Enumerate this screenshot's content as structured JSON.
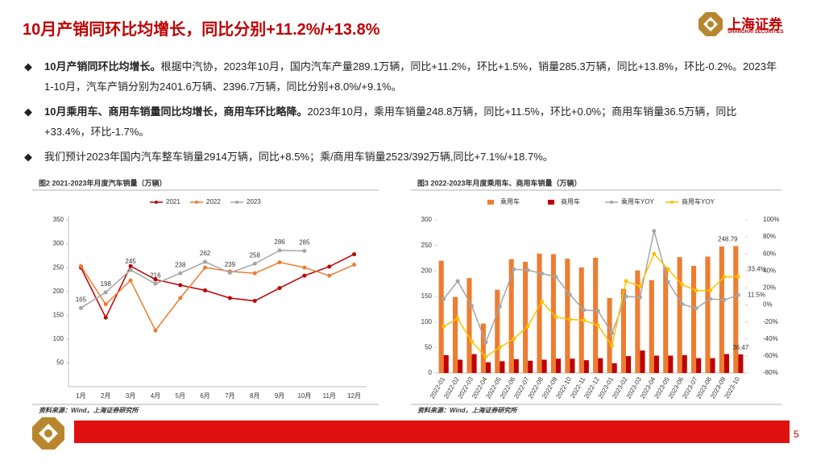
{
  "header": {
    "title": "10月产销同环比均增长，同比分别+11.2%/+13.8%",
    "logo_cn": "上海证券",
    "logo_en": "SHANGHAI SECURITIES"
  },
  "bullets": [
    {
      "lead": "10月产销同环比均增长。",
      "text": "根据中汽协，2023年10月，国内汽车产量289.1万辆，同比+11.2%，环比+1.5%，销量285.3万辆，同比+13.8%，环比-0.2%。2023年1-10月，汽车产销分别为2401.6万辆、2396.7万辆，同比分别+8.0%/+9.1%。"
    },
    {
      "lead": "10月乘用车、商用车销量同比均增长，商用车环比略降。",
      "text": "2023年10月，乘用车销量248.8万辆，同比+11.5%，环比+0.0%；商用车销量36.5万辆，同比+33.4%，环比-1.7%。"
    },
    {
      "lead": "",
      "text": "我们预计2023年国内汽车整车销量2914万辆，同比+8.5%；乘/商用车销量2523/392万辆,同比+7.1%/+18.7%。"
    }
  ],
  "chart_data": [
    {
      "type": "line",
      "title": "图2 2021-2023年月度汽车销量（万辆）",
      "source": "资料来源：Wind，上海证券研究所",
      "categories": [
        "1月",
        "2月",
        "3月",
        "4月",
        "5月",
        "6月",
        "7月",
        "8月",
        "9月",
        "10月",
        "11月",
        "12月"
      ],
      "series": [
        {
          "name": "2021",
          "color": "#c00000",
          "values": [
            250,
            145,
            253,
            225,
            213,
            202,
            186,
            180,
            207,
            233,
            252,
            278
          ]
        },
        {
          "name": "2022",
          "color": "#ed7d31",
          "values": [
            253,
            173,
            223,
            118,
            186,
            250,
            242,
            238,
            261,
            250,
            233,
            256
          ]
        },
        {
          "name": "2023",
          "color": "#a5a5a5",
          "show_values": true,
          "values": [
            165,
            198,
            245,
            216,
            238,
            262,
            239,
            258,
            286,
            285,
            null,
            null
          ]
        }
      ],
      "ylim": [
        0,
        350
      ],
      "yticks": [
        50,
        100,
        150,
        200,
        250,
        300,
        350
      ],
      "grid": false
    },
    {
      "type": "bar",
      "title": "图3 2022-2023年月度乘用车、商用车销量（万辆）",
      "source": "资料来源：Wind，上海证券研究所",
      "categories": [
        "2022-01",
        "2022-02",
        "2022-03",
        "2022-04",
        "2022-05",
        "2022-06",
        "2022-07",
        "2022-08",
        "2022-09",
        "2022-10",
        "2022-11",
        "2022-12",
        "2023-01",
        "2023-02",
        "2023-03",
        "2023-04",
        "2023-05",
        "2023-06",
        "2023-07",
        "2023-08",
        "2023-09",
        "2023-10"
      ],
      "series": [
        {
          "name": "乘用车",
          "color": "#ed7d31",
          "values": [
            220,
            149,
            186,
            97,
            163,
            223,
            218,
            234,
            233,
            224,
            207,
            226,
            147,
            165,
            201,
            182,
            207,
            227,
            210,
            228,
            248,
            248.79
          ],
          "value_labels": [
            null,
            null,
            null,
            null,
            null,
            null,
            null,
            null,
            null,
            null,
            null,
            null,
            null,
            null,
            null,
            null,
            null,
            null,
            null,
            null,
            null,
            "248.79"
          ]
        },
        {
          "name": "商用车",
          "color": "#c00000",
          "values": [
            35,
            26,
            37,
            21,
            23,
            27,
            24,
            26,
            28,
            28,
            25,
            29,
            19,
            33,
            44,
            34,
            34,
            35,
            29,
            29,
            37,
            36.47
          ],
          "value_labels": [
            null,
            null,
            null,
            null,
            null,
            null,
            null,
            null,
            null,
            null,
            null,
            null,
            null,
            null,
            null,
            null,
            null,
            null,
            null,
            null,
            null,
            "36.47"
          ]
        },
        {
          "name": "乘用车YOY",
          "color": "#a5a5a5",
          "type": "line",
          "axis": "y2",
          "values": [
            7,
            28,
            -1,
            -44,
            -2,
            42,
            41,
            37,
            33,
            12,
            -6,
            -7,
            -33,
            10,
            9,
            87,
            27,
            1,
            -4,
            7,
            6,
            11.5
          ],
          "value_labels": [
            null,
            null,
            null,
            null,
            null,
            null,
            null,
            null,
            null,
            null,
            null,
            null,
            null,
            null,
            null,
            null,
            null,
            null,
            null,
            null,
            null,
            "11.5%"
          ]
        },
        {
          "name": "商用车YOY",
          "color": "#ffc000",
          "type": "line",
          "axis": "y2",
          "values": [
            -25,
            -16,
            -43,
            -61,
            -50,
            -40,
            -25,
            4,
            -14,
            -17,
            -18,
            -24,
            -48,
            28,
            22,
            60,
            42,
            24,
            17,
            17,
            33,
            33.4
          ],
          "value_labels": [
            null,
            null,
            null,
            null,
            null,
            null,
            null,
            null,
            null,
            null,
            null,
            null,
            null,
            null,
            null,
            null,
            null,
            null,
            null,
            null,
            null,
            "33.4%"
          ]
        }
      ],
      "ylim": [
        0,
        300
      ],
      "yticks": [
        0,
        50,
        100,
        150,
        200,
        250,
        300
      ],
      "y2lim": [
        -80,
        100
      ],
      "y2ticks": [
        {
          "value": -80,
          "label": "-80%"
        },
        {
          "value": -60,
          "label": "-60%"
        },
        {
          "value": -40,
          "label": "-40%"
        },
        {
          "value": -20,
          "label": "-20%"
        },
        {
          "value": 0,
          "label": "0%"
        },
        {
          "value": 20,
          "label": "20%"
        },
        {
          "value": 40,
          "label": "40%"
        },
        {
          "value": 60,
          "label": "60%"
        },
        {
          "value": 80,
          "label": "80%"
        },
        {
          "value": 100,
          "label": "100%"
        }
      ],
      "grid": false
    }
  ],
  "page_number": "5"
}
